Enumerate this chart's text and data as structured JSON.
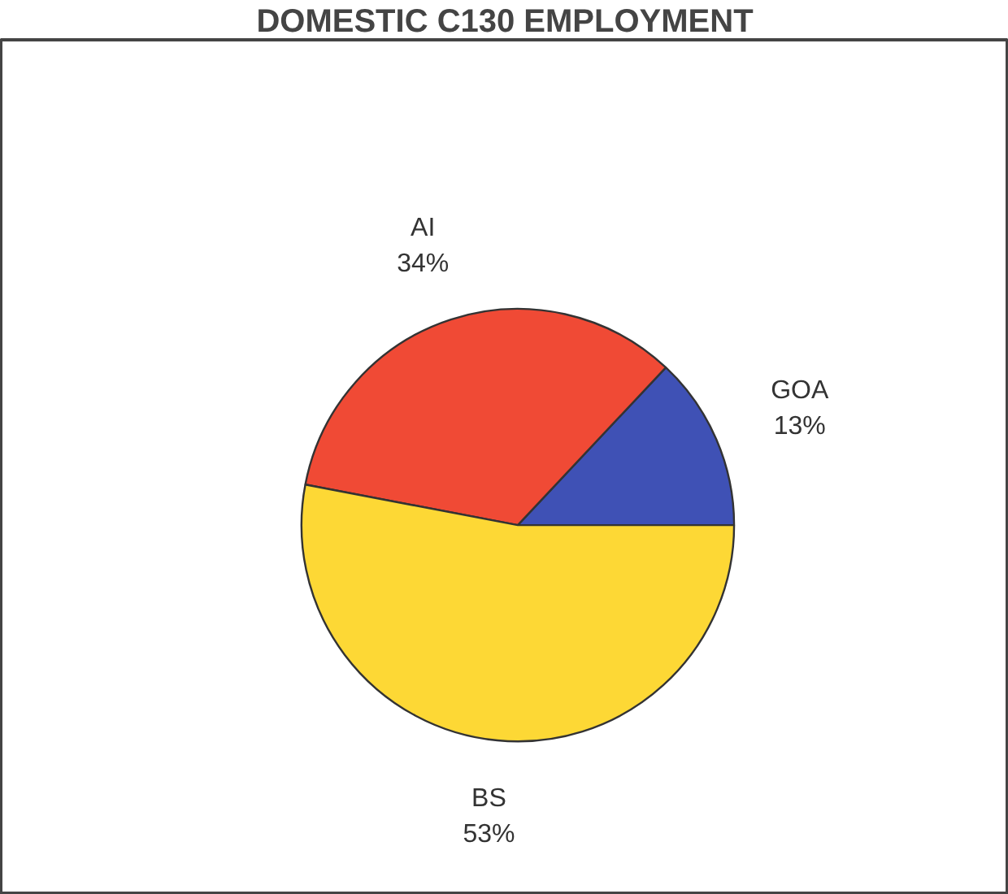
{
  "chart_data": {
    "type": "pie",
    "title": "DOMESTIC C130 EMPLOYMENT",
    "categories": [
      "GOA",
      "AI",
      "BS"
    ],
    "values": [
      13,
      34,
      53
    ],
    "colors": [
      "#3f51b5",
      "#f04a35",
      "#fdd835"
    ],
    "value_labels": [
      "13%",
      "34%",
      "53%"
    ]
  }
}
